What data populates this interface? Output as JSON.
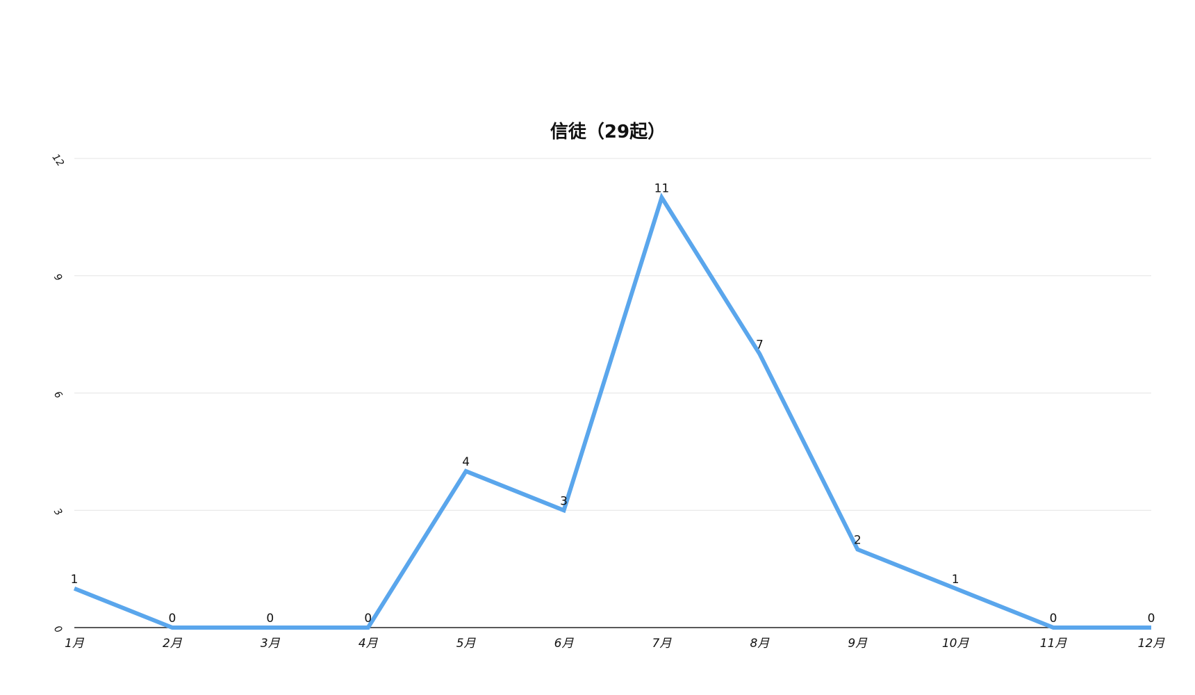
{
  "chart_data": {
    "type": "line",
    "title": "信徒（29起）",
    "xlabel": "",
    "ylabel": "",
    "categories": [
      "1月",
      "2月",
      "3月",
      "4月",
      "5月",
      "6月",
      "7月",
      "8月",
      "9月",
      "10月",
      "11月",
      "12月"
    ],
    "series": [
      {
        "values": [
          1,
          0,
          0,
          0,
          4,
          3,
          11,
          7,
          2,
          1,
          0,
          0
        ],
        "color": "#5aa6ec"
      }
    ],
    "ylim": [
      0,
      12
    ],
    "yticks": [
      "0",
      "3",
      "6",
      "9",
      "12"
    ],
    "grid": true,
    "legend": "none",
    "data_labels": true
  }
}
